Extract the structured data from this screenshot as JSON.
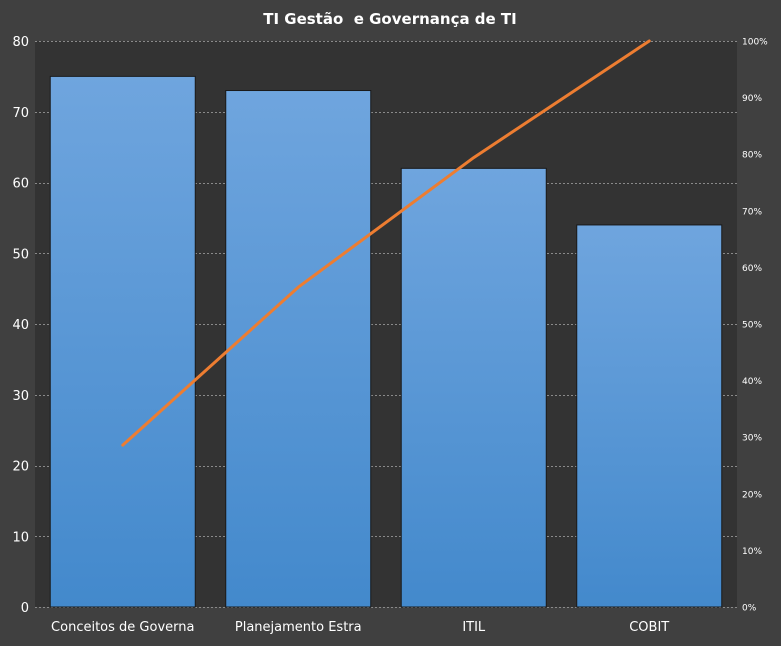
{
  "chart_data": {
    "type": "bar",
    "title": "TI Gestão  e Governança de TI",
    "categories": [
      "Conceitos de Governa",
      "Planejamento Estra",
      "ITIL",
      "COBIT"
    ],
    "series": [
      {
        "values": [
          75,
          73,
          62,
          54
        ],
        "color": "#5B9BD5"
      },
      {
        "type": "line",
        "axis": "secondary",
        "values": [
          28.6,
          56.5,
          79.4,
          100
        ],
        "color": "#ED7D31"
      }
    ],
    "y_axis": {
      "min": 0,
      "max": 80,
      "step": 10,
      "tick_labels": [
        "0",
        "10",
        "20",
        "30",
        "40",
        "50",
        "60",
        "70",
        "80"
      ]
    },
    "y2_axis": {
      "min": 0,
      "max": 100,
      "step": 10,
      "tick_labels": [
        "0%",
        "10%",
        "20%",
        "30%",
        "40%",
        "50%",
        "60%",
        "70%",
        "80%",
        "90%",
        "100%"
      ]
    },
    "grid": true,
    "legend": "none",
    "background_color": "#404040",
    "plot_background_color": "#333333"
  }
}
